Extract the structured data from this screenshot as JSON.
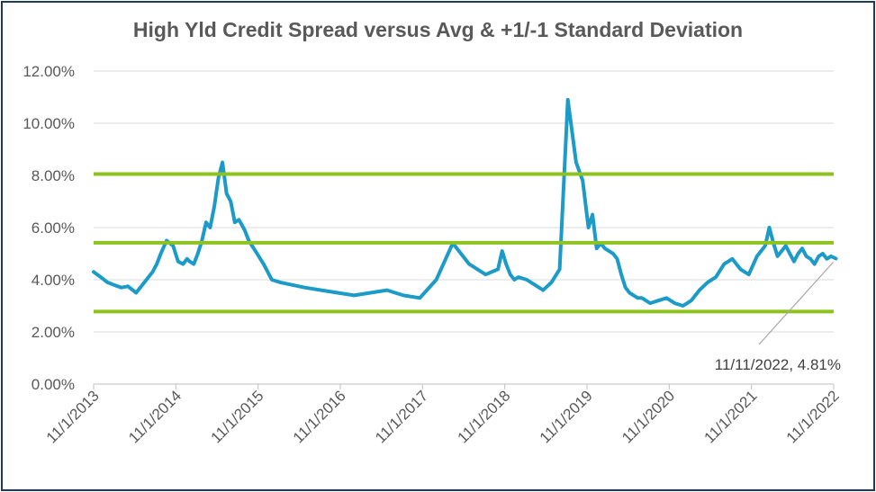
{
  "chart_data": {
    "type": "line",
    "title": "High Yld Credit Spread versus Avg & +1/-1 Standard Deviation",
    "xlabel": "",
    "ylabel": "",
    "ylim": [
      0,
      12
    ],
    "y_tick_labels": [
      "0.00%",
      "2.00%",
      "4.00%",
      "6.00%",
      "8.00%",
      "10.00%",
      "12.00%"
    ],
    "y_tick_values": [
      0,
      2,
      4,
      6,
      8,
      10,
      12
    ],
    "x_range": [
      2013.833,
      2022.833
    ],
    "x_tick_labels": [
      "11/1/2013",
      "11/1/2014",
      "11/1/2015",
      "11/1/2016",
      "11/1/2017",
      "11/1/2018",
      "11/1/2019",
      "11/1/2020",
      "11/1/2021",
      "11/1/2022"
    ],
    "x_tick_values": [
      2013.833,
      2014.833,
      2015.833,
      2016.833,
      2017.833,
      2018.833,
      2019.833,
      2020.833,
      2021.833,
      2022.833
    ],
    "grid": true,
    "colors": {
      "spread": "#1c9bc8",
      "bands": "#8dc21f",
      "grid": "#d9d9d9",
      "axis": "#bfbfbf"
    },
    "reference_lines": [
      {
        "value": 8.05
      },
      {
        "value": 5.42
      },
      {
        "value": 2.78
      }
    ],
    "series": [
      {
        "x": [
          2013.833,
          2013.92,
          2014.0,
          2014.08,
          2014.17,
          2014.25,
          2014.35,
          2014.45,
          2014.55,
          2014.6,
          2014.65,
          2014.72,
          2014.8,
          2014.86,
          2014.92,
          2014.97,
          2015.0,
          2015.05,
          2015.1,
          2015.15,
          2015.2,
          2015.25,
          2015.3,
          2015.35,
          2015.4,
          2015.45,
          2015.5,
          2015.55,
          2015.6,
          2015.67,
          2015.72,
          2015.8,
          2015.9,
          2016.0,
          2016.1,
          2016.25,
          2016.4,
          2016.6,
          2016.8,
          2017.0,
          2017.2,
          2017.4,
          2017.6,
          2017.8,
          2018.0,
          2018.2,
          2018.4,
          2018.6,
          2018.75,
          2018.8,
          2018.85,
          2018.9,
          2018.95,
          2019.0,
          2019.1,
          2019.2,
          2019.3,
          2019.4,
          2019.5,
          2019.6,
          2019.7,
          2019.78,
          2019.85,
          2019.9,
          2019.95,
          2020.0,
          2020.05,
          2020.1,
          2020.15,
          2020.2,
          2020.25,
          2020.3,
          2020.35,
          2020.4,
          2020.45,
          2020.5,
          2020.55,
          2020.6,
          2020.7,
          2020.8,
          2020.9,
          2021.0,
          2021.1,
          2021.2,
          2021.3,
          2021.4,
          2021.5,
          2021.6,
          2021.7,
          2021.8,
          2021.9,
          2022.0,
          2022.05,
          2022.1,
          2022.15,
          2022.2,
          2022.25,
          2022.3,
          2022.35,
          2022.4,
          2022.45,
          2022.5,
          2022.55,
          2022.6,
          2022.65,
          2022.7,
          2022.75,
          2022.8,
          2022.86
        ],
        "values": [
          4.3,
          4.1,
          3.9,
          3.8,
          3.7,
          3.75,
          3.5,
          3.9,
          4.3,
          4.6,
          5.0,
          5.5,
          5.3,
          4.7,
          4.6,
          4.8,
          4.7,
          4.6,
          5.0,
          5.5,
          6.2,
          6.0,
          6.8,
          7.9,
          8.5,
          7.3,
          7.0,
          6.2,
          6.3,
          5.9,
          5.5,
          5.1,
          4.6,
          4.0,
          3.9,
          3.8,
          3.7,
          3.6,
          3.5,
          3.4,
          3.5,
          3.6,
          3.4,
          3.3,
          4.0,
          5.4,
          4.6,
          4.2,
          4.4,
          5.1,
          4.6,
          4.2,
          4.0,
          4.1,
          4.0,
          3.8,
          3.6,
          3.9,
          4.4,
          10.9,
          8.5,
          7.8,
          6.0,
          6.5,
          5.2,
          5.4,
          5.2,
          5.1,
          5.0,
          4.8,
          4.2,
          3.7,
          3.5,
          3.4,
          3.3,
          3.3,
          3.2,
          3.1,
          3.2,
          3.3,
          3.1,
          3.0,
          3.2,
          3.6,
          3.9,
          4.1,
          4.6,
          4.8,
          4.4,
          4.2,
          4.9,
          5.3,
          6.0,
          5.4,
          4.9,
          5.1,
          5.3,
          5.0,
          4.7,
          5.0,
          5.2,
          4.9,
          4.8,
          4.6,
          4.9,
          5.0,
          4.8,
          4.9,
          4.81
        ]
      }
    ],
    "annotation": {
      "text": "11/11/2022, 4.81%",
      "x": 2022.86,
      "y": 4.81
    }
  }
}
